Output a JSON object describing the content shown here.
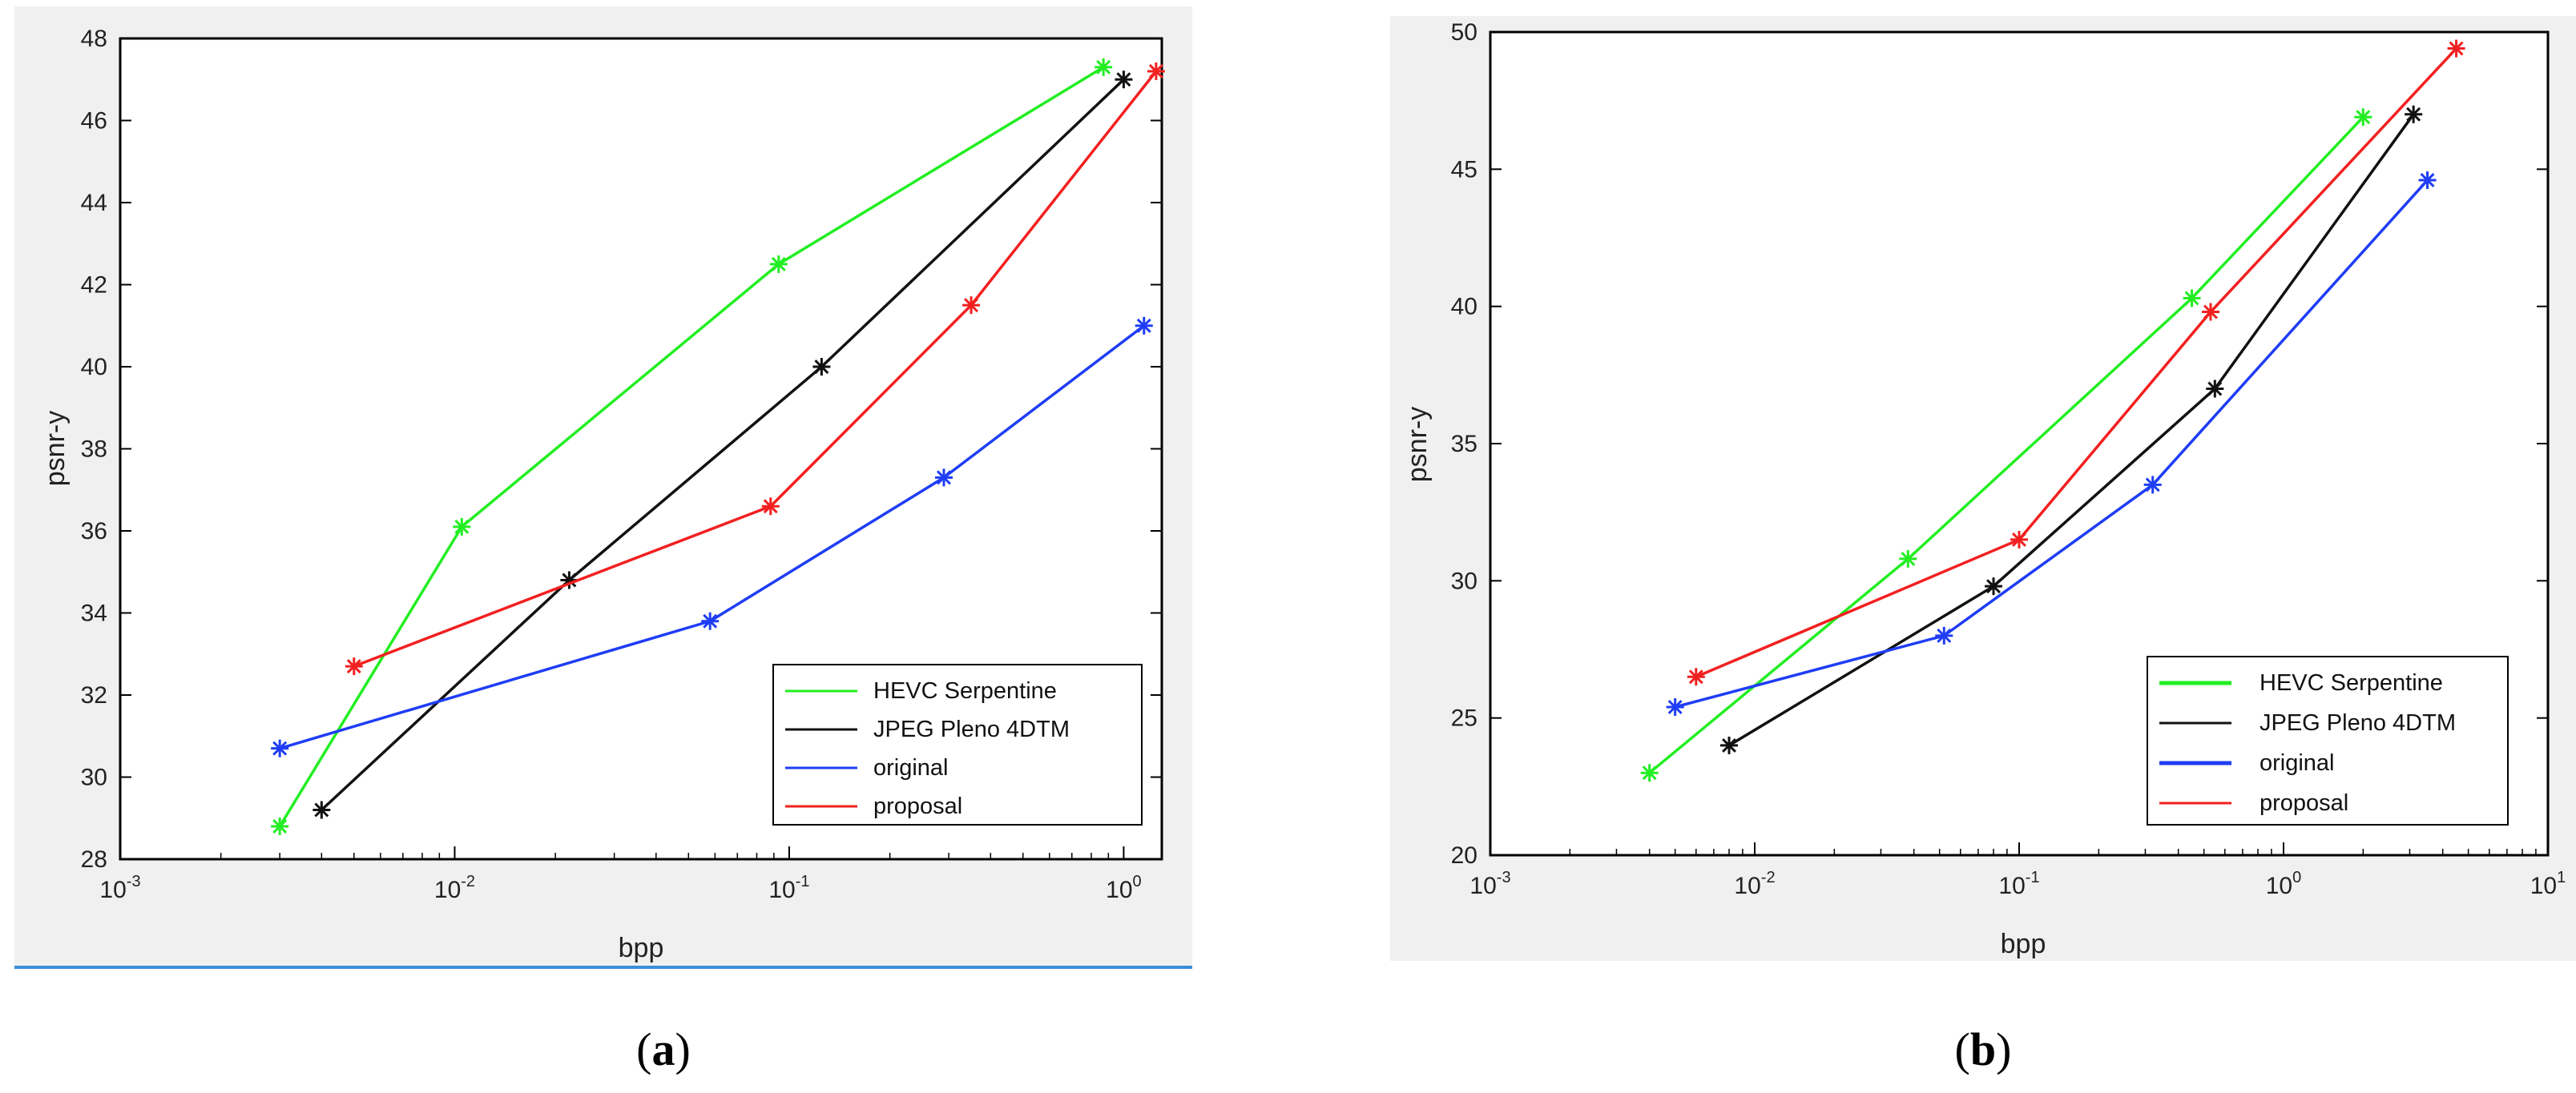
{
  "colors": {
    "hevc": "#22ee22",
    "jpeg": "#111111",
    "original": "#1f3df5",
    "proposal": "#f22020",
    "panel_bg": "#f0f0f0",
    "caption_rule": "#3b8fd9"
  },
  "chart_data": [
    {
      "type": "line",
      "panel": "a",
      "caption": "a",
      "xlabel": "bpp",
      "ylabel": "psnr-y",
      "xscale": "log",
      "xlim": [
        0.001,
        1.3
      ],
      "ylim": [
        28,
        48
      ],
      "xticks": [
        0.001,
        0.01,
        0.1,
        1
      ],
      "xtick_labels": [
        {
          "base": "10",
          "exp": "-3"
        },
        {
          "base": "10",
          "exp": "-2"
        },
        {
          "base": "10",
          "exp": "-1"
        },
        {
          "base": "10",
          "exp": "0",
          "text": "10"
        }
      ],
      "xtick_labels_text": [
        "10-3",
        "10-2",
        "10-1",
        "100"
      ],
      "yticks": [
        28,
        30,
        32,
        34,
        36,
        38,
        40,
        42,
        44,
        46,
        48
      ],
      "ytick_labels": [
        "28",
        "30",
        "32",
        "34",
        "36",
        "38",
        "40",
        "42",
        "44",
        "46",
        "48"
      ],
      "legend_position": "bottom-right",
      "series": [
        {
          "name": "HEVC Serpentine",
          "color": "#22ee22",
          "x": [
            0.003,
            0.0105,
            0.093,
            0.87
          ],
          "y": [
            28.8,
            36.1,
            42.5,
            47.3
          ]
        },
        {
          "name": "JPEG Pleno 4DTM",
          "color": "#111111",
          "x": [
            0.004,
            0.022,
            0.125,
            1.0
          ],
          "y": [
            29.2,
            34.8,
            40.0,
            47.0
          ]
        },
        {
          "name": "original",
          "color": "#1f3df5",
          "x": [
            0.003,
            0.058,
            0.29,
            1.15
          ],
          "y": [
            30.7,
            33.8,
            37.3,
            41.0
          ]
        },
        {
          "name": "proposal",
          "color": "#f22020",
          "x": [
            0.005,
            0.088,
            0.35,
            1.25
          ],
          "y": [
            32.7,
            36.6,
            41.5,
            47.2
          ]
        }
      ]
    },
    {
      "type": "line",
      "panel": "b",
      "caption": "b",
      "xlabel": "bpp",
      "ylabel": "psnr-y",
      "xscale": "log",
      "xlim": [
        0.001,
        10
      ],
      "ylim": [
        20,
        50
      ],
      "xticks": [
        0.001,
        0.01,
        0.1,
        1,
        10
      ],
      "xtick_labels": [
        {
          "base": "10",
          "exp": "-3"
        },
        {
          "base": "10",
          "exp": "-2"
        },
        {
          "base": "10",
          "exp": "-1"
        },
        {
          "base": "10",
          "exp": "0"
        },
        {
          "base": "10",
          "exp": "1"
        }
      ],
      "xtick_labels_text": [
        "10-3",
        "10-2",
        "10-1",
        "100",
        "101"
      ],
      "yticks": [
        20,
        25,
        30,
        35,
        40,
        45,
        50
      ],
      "ytick_labels": [
        "20",
        "25",
        "30",
        "35",
        "40",
        "45",
        "50"
      ],
      "legend_position": "bottom-right",
      "series": [
        {
          "name": "HEVC Serpentine",
          "color": "#22ee22",
          "x": [
            0.004,
            0.038,
            0.45,
            2.0
          ],
          "y": [
            23.0,
            30.8,
            40.3,
            46.9
          ]
        },
        {
          "name": "JPEG Pleno 4DTM",
          "color": "#111111",
          "x": [
            0.008,
            0.08,
            0.55,
            3.1
          ],
          "y": [
            24.0,
            29.8,
            37.0,
            47.0
          ]
        },
        {
          "name": "original",
          "color": "#1f3df5",
          "x": [
            0.005,
            0.052,
            0.32,
            3.5
          ],
          "y": [
            25.4,
            28.0,
            33.5,
            44.6
          ]
        },
        {
          "name": "proposal",
          "color": "#f22020",
          "x": [
            0.006,
            0.1,
            0.53,
            4.5
          ],
          "y": [
            26.5,
            31.5,
            39.8,
            49.4
          ]
        }
      ]
    }
  ]
}
